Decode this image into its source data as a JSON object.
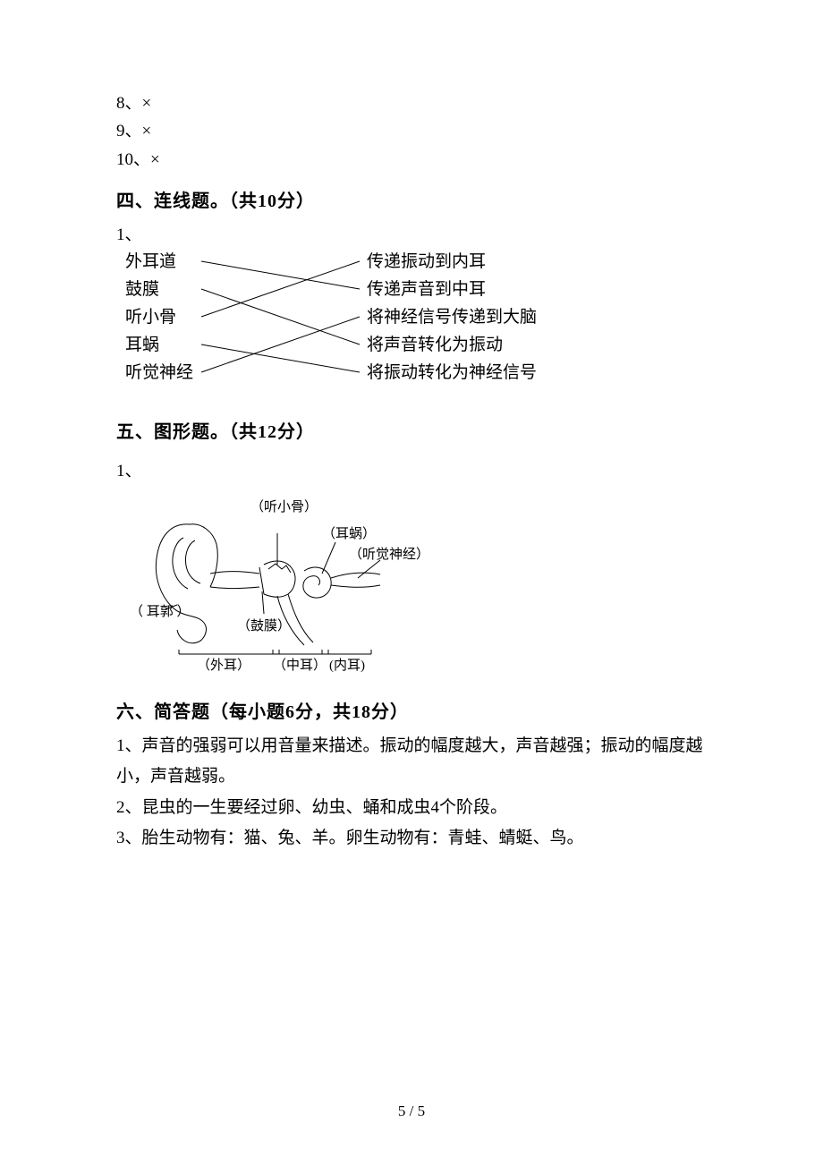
{
  "answers_top": [
    {
      "n": "8",
      "mark": "×"
    },
    {
      "n": "9",
      "mark": "×"
    },
    {
      "n": "10",
      "mark": "×"
    }
  ],
  "sec4": {
    "heading": "四、连线题。（共10分）",
    "qnum": "1、",
    "left": [
      "外耳道",
      "鼓膜",
      "听小骨",
      "耳蜗",
      "听觉神经"
    ],
    "right": [
      "传递振动到内耳",
      "传递声音到中耳",
      "将神经信号传递到大脑",
      "将声音转化为振动",
      "将振动转化为神经信号"
    ],
    "edges": [
      [
        0,
        1
      ],
      [
        1,
        3
      ],
      [
        2,
        0
      ],
      [
        3,
        4
      ],
      [
        4,
        2
      ]
    ],
    "leftX": 10,
    "rightX": 280,
    "leftEdgeX": 95,
    "rightEdgeX": 272,
    "rowStartY": 20,
    "rowStep": 31,
    "lineColor": "#000000",
    "lineWidth": 1,
    "fontSize": 19,
    "yTextOffset": 0,
    "leftLineNudgeY": 0,
    "rightLineNudgeY": 0
  },
  "sec5": {
    "heading": "五、图形题。（共12分）",
    "qnum": "1、",
    "diagram": {
      "labels": {
        "ossicles": "（听小骨）",
        "cochlea": "（耳蜗）",
        "nerve": "（听觉神经）",
        "pinna": "（ 耳郭 ）",
        "eardrum": "（鼓膜）",
        "outer": "（外耳）",
        "middle": "（中耳）",
        "inner": "(内耳)"
      },
      "stroke": "#000000",
      "strokeWidth": 1
    }
  },
  "sec6": {
    "heading": "六、简答题（每小题6分，共18分）",
    "a1_l1": "1、声音的强弱可以用音量来描述。振动的幅度越大，声音越强；振动的幅度越",
    "a1_l2": "小，声音越弱。",
    "a2": "2、昆虫的一生要经过卵、幼虫、蛹和成虫4个阶段。",
    "a3": "3、胎生动物有：猫、兔、羊。卵生动物有：青蛙、蜻蜓、鸟。"
  },
  "footer": "5 / 5"
}
